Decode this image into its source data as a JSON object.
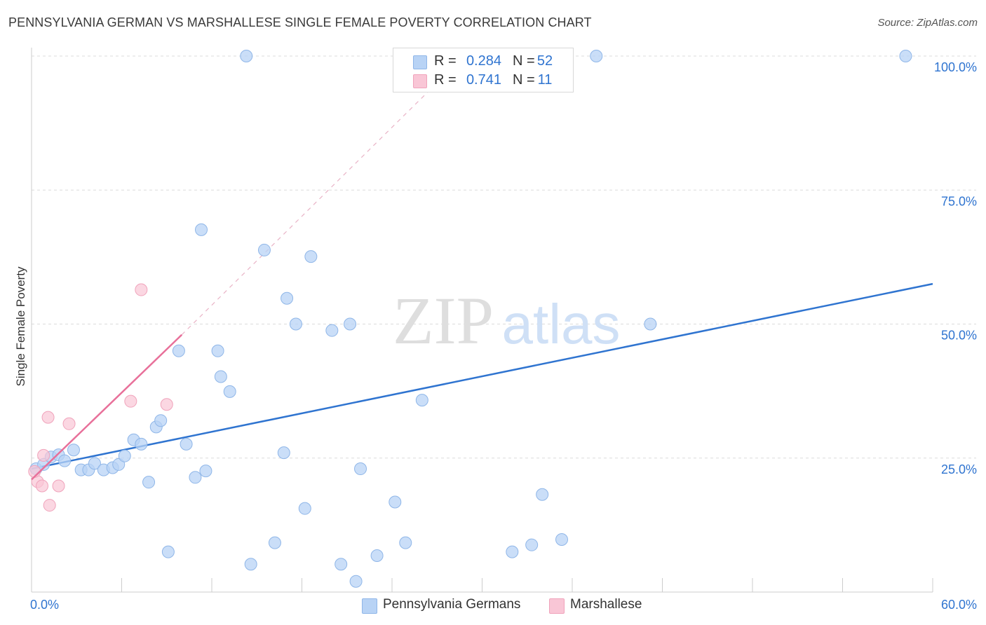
{
  "header": {
    "title": "PENNSYLVANIA GERMAN VS MARSHALLESE SINGLE FEMALE POVERTY CORRELATION CHART",
    "source": "Source: ZipAtlas.com"
  },
  "watermark": {
    "zip": "ZIP",
    "atlas": "atlas"
  },
  "legend": {
    "series1": {
      "r_label": "R =",
      "r_value": "0.284",
      "n_label": "N =",
      "n_value": "52"
    },
    "series2": {
      "r_label": "R =",
      "r_value": "0.741",
      "n_label": "N =",
      "n_value": "11"
    }
  },
  "bottom_legend": {
    "series1": "Pennsylvania Germans",
    "series2": "Marshallese"
  },
  "colors": {
    "blue_fill": "#b8d3f5",
    "blue_stroke": "#8fb6e8",
    "blue_line": "#2f74d0",
    "pink_fill": "#f9c6d6",
    "pink_stroke": "#f0a3bb",
    "pink_line": "#e8709a",
    "tick_text": "#2f74d0",
    "grid": "#dcdcdc"
  },
  "chart_data": {
    "type": "scatter",
    "title": "PENNSYLVANIA GERMAN VS MARSHALLESE SINGLE FEMALE POVERTY CORRELATION CHART",
    "xlabel": "",
    "ylabel": "Single Female Poverty",
    "xlim": [
      0,
      60
    ],
    "ylim": [
      0,
      100
    ],
    "x_tick_labels": [
      "0.0%",
      "60.0%"
    ],
    "y_ticks": [
      25,
      50,
      75,
      100
    ],
    "y_tick_labels": [
      "25.0%",
      "50.0%",
      "75.0%",
      "100.0%"
    ],
    "grid": true,
    "series": [
      {
        "name": "Pennsylvania Germans",
        "r": 0.284,
        "n": 52,
        "trend": {
          "x": [
            0,
            60
          ],
          "y": [
            23.0,
            57.5
          ]
        },
        "points": [
          {
            "x": 0.3,
            "y": 23.0
          },
          {
            "x": 0.8,
            "y": 23.8
          },
          {
            "x": 1.3,
            "y": 25.2
          },
          {
            "x": 1.8,
            "y": 25.6
          },
          {
            "x": 2.2,
            "y": 24.5
          },
          {
            "x": 2.8,
            "y": 26.5
          },
          {
            "x": 3.3,
            "y": 22.8
          },
          {
            "x": 3.8,
            "y": 22.8
          },
          {
            "x": 4.2,
            "y": 24.0
          },
          {
            "x": 4.8,
            "y": 22.8
          },
          {
            "x": 5.4,
            "y": 23.2
          },
          {
            "x": 5.8,
            "y": 23.8
          },
          {
            "x": 6.2,
            "y": 25.4
          },
          {
            "x": 6.8,
            "y": 28.4
          },
          {
            "x": 7.3,
            "y": 27.6
          },
          {
            "x": 7.8,
            "y": 20.5
          },
          {
            "x": 8.3,
            "y": 30.8
          },
          {
            "x": 8.6,
            "y": 32.0
          },
          {
            "x": 9.1,
            "y": 7.5
          },
          {
            "x": 9.8,
            "y": 45.0
          },
          {
            "x": 10.3,
            "y": 27.6
          },
          {
            "x": 10.9,
            "y": 21.4
          },
          {
            "x": 11.3,
            "y": 67.6
          },
          {
            "x": 11.6,
            "y": 22.6
          },
          {
            "x": 12.4,
            "y": 45.0
          },
          {
            "x": 12.6,
            "y": 40.2
          },
          {
            "x": 13.2,
            "y": 37.4
          },
          {
            "x": 14.3,
            "y": 100
          },
          {
            "x": 14.6,
            "y": 5.2
          },
          {
            "x": 15.5,
            "y": 63.8
          },
          {
            "x": 16.2,
            "y": 9.2
          },
          {
            "x": 16.8,
            "y": 26.0
          },
          {
            "x": 17.0,
            "y": 54.8
          },
          {
            "x": 17.6,
            "y": 50.0
          },
          {
            "x": 18.2,
            "y": 15.6
          },
          {
            "x": 18.6,
            "y": 62.6
          },
          {
            "x": 20.0,
            "y": 48.8
          },
          {
            "x": 20.6,
            "y": 5.2
          },
          {
            "x": 21.2,
            "y": 50.0
          },
          {
            "x": 21.6,
            "y": 2.0
          },
          {
            "x": 21.9,
            "y": 23.0
          },
          {
            "x": 23.0,
            "y": 6.8
          },
          {
            "x": 24.2,
            "y": 16.8
          },
          {
            "x": 24.9,
            "y": 9.2
          },
          {
            "x": 26.0,
            "y": 35.8
          },
          {
            "x": 32.0,
            "y": 7.5
          },
          {
            "x": 33.3,
            "y": 8.8
          },
          {
            "x": 34.0,
            "y": 18.2
          },
          {
            "x": 35.3,
            "y": 9.8
          },
          {
            "x": 37.6,
            "y": 100
          },
          {
            "x": 41.2,
            "y": 50.0
          },
          {
            "x": 58.2,
            "y": 100
          }
        ]
      },
      {
        "name": "Marshallese",
        "r": 0.741,
        "n": 11,
        "trend": {
          "x": [
            0,
            10
          ],
          "y": [
            21.0,
            48.0
          ]
        },
        "trend_dashed_extension": {
          "x": [
            10,
            27
          ],
          "y": [
            48.0,
            95.0
          ]
        },
        "points": [
          {
            "x": 0.4,
            "y": 20.6
          },
          {
            "x": 0.7,
            "y": 19.8
          },
          {
            "x": 0.8,
            "y": 25.5
          },
          {
            "x": 1.1,
            "y": 32.6
          },
          {
            "x": 1.2,
            "y": 16.2
          },
          {
            "x": 1.8,
            "y": 19.8
          },
          {
            "x": 2.5,
            "y": 31.4
          },
          {
            "x": 6.6,
            "y": 35.6
          },
          {
            "x": 7.3,
            "y": 56.4
          },
          {
            "x": 9.0,
            "y": 35.0
          },
          {
            "x": 0.2,
            "y": 22.5
          }
        ]
      }
    ]
  }
}
